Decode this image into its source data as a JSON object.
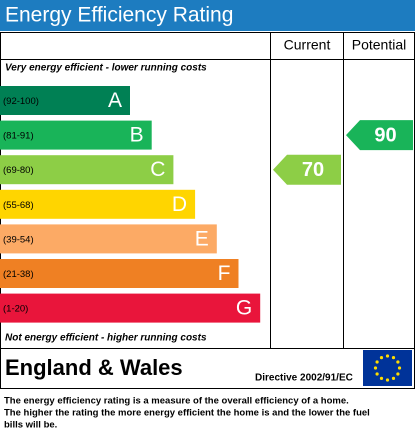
{
  "chart_data": {
    "type": "epc",
    "title": "Energy Efficiency Rating",
    "columns": [
      "Current",
      "Potential"
    ],
    "top_note": "Very energy efficient - lower running costs",
    "bottom_note": "Not energy efficient - higher running costs",
    "bands": [
      {
        "range": "(92-100)",
        "letter": "A",
        "color": "#008054"
      },
      {
        "range": "(81-91)",
        "letter": "B",
        "color": "#19b459"
      },
      {
        "range": "(69-80)",
        "letter": "C",
        "color": "#8dce46"
      },
      {
        "range": "(55-68)",
        "letter": "D",
        "color": "#ffd500"
      },
      {
        "range": "(39-54)",
        "letter": "E",
        "color": "#fcaa65"
      },
      {
        "range": "(21-38)",
        "letter": "F",
        "color": "#ef8023"
      },
      {
        "range": "(1-20)",
        "letter": "G",
        "color": "#e9153b"
      }
    ],
    "current": 70,
    "potential": 90,
    "region": "England & Wales",
    "directive": "Directive 2002/91/EC",
    "footer": [
      "The energy efficiency rating is a measure of the overall efficiency of a home.",
      "The higher the rating the more energy efficient the home is and the lower the fuel",
      "bills will be."
    ]
  }
}
